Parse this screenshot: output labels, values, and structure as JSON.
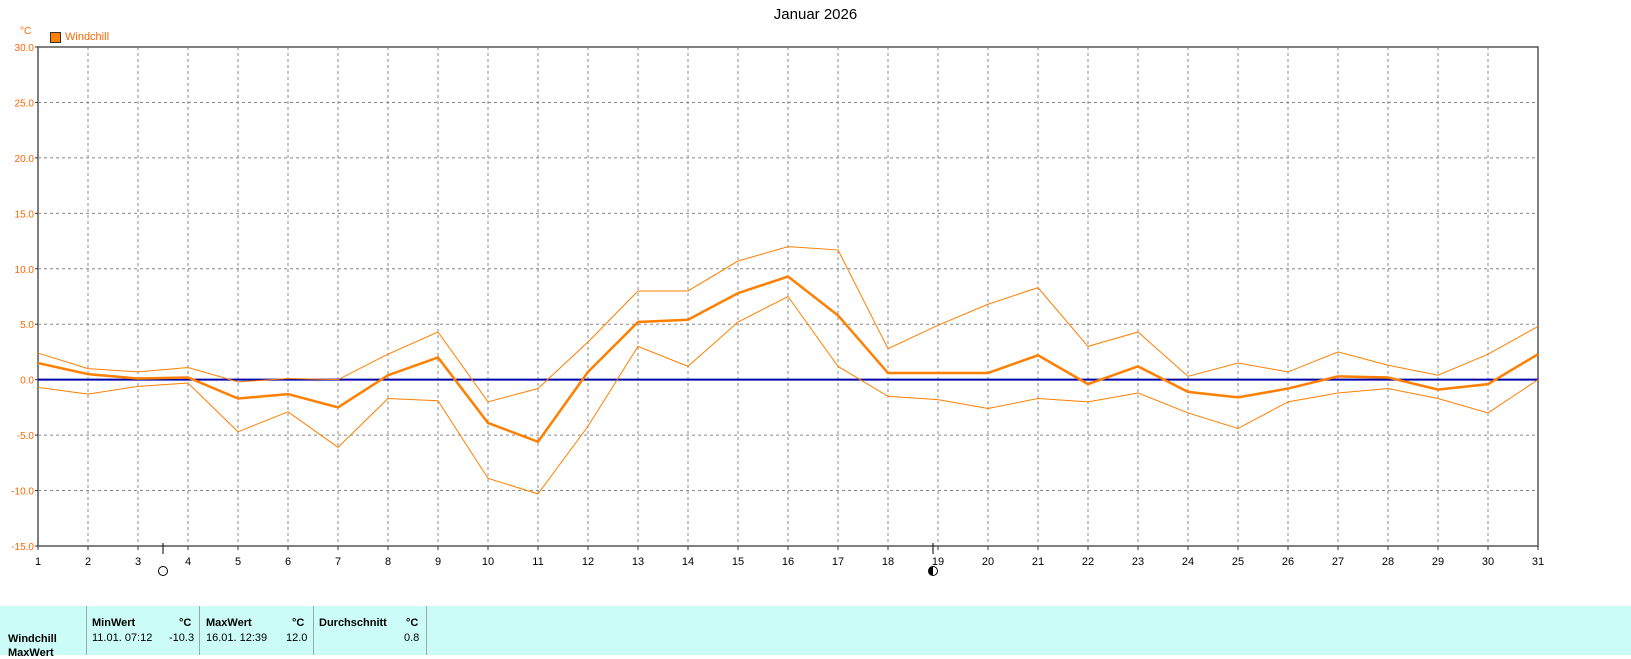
{
  "title": "Januar 2026",
  "unit_label": "°C",
  "legend": {
    "label": "Windchill",
    "color": "#ff7f00"
  },
  "moon_icons": [
    {
      "name": "full-moon-icon",
      "day": 3.5
    },
    {
      "name": "last-quarter-moon-icon",
      "day": 18.9
    }
  ],
  "chart_data": {
    "type": "line",
    "x": [
      1,
      2,
      3,
      4,
      5,
      6,
      7,
      8,
      9,
      10,
      11,
      12,
      13,
      14,
      15,
      16,
      17,
      18,
      19,
      20,
      21,
      22,
      23,
      24,
      25,
      26,
      27,
      28,
      29,
      30,
      31
    ],
    "xticks": [
      "1",
      "2",
      "3",
      "4",
      "5",
      "6",
      "7",
      "8",
      "9",
      "10",
      "11",
      "12",
      "13",
      "14",
      "15",
      "16",
      "17",
      "18",
      "19",
      "20",
      "21",
      "22",
      "23",
      "24",
      "25",
      "26",
      "27",
      "28",
      "29",
      "30",
      "31"
    ],
    "yticks": [
      "30.0",
      "25.0",
      "20.0",
      "15.0",
      "10.0",
      "5.0",
      "0.0",
      "-5.0",
      "-10.0",
      "-15.0"
    ],
    "ylim": [
      -15,
      30
    ],
    "grid": true,
    "reference_line": 0,
    "series": [
      {
        "name": "Windchill",
        "role": "mean",
        "color": "#ff7f00",
        "values": [
          1.5,
          0.5,
          0.1,
          0.2,
          -1.7,
          -1.3,
          -2.5,
          0.4,
          2.0,
          -3.9,
          -5.6,
          0.7,
          5.2,
          5.4,
          7.8,
          9.3,
          5.8,
          0.6,
          0.6,
          0.6,
          2.2,
          -0.4,
          1.2,
          -1.1,
          -1.6,
          -0.8,
          0.3,
          0.2,
          -0.9,
          -0.4,
          2.3
        ]
      },
      {
        "role": "max",
        "color": "#ff7f00",
        "values": [
          2.4,
          1.0,
          0.7,
          1.1,
          -0.2,
          0.1,
          0.0,
          2.3,
          4.3,
          -2.0,
          -0.8,
          3.4,
          8.0,
          8.0,
          10.7,
          12.0,
          11.7,
          2.8,
          4.9,
          6.8,
          8.3,
          3.0,
          4.3,
          0.3,
          1.5,
          0.7,
          2.5,
          1.3,
          0.4,
          2.3,
          4.8
        ]
      },
      {
        "role": "min",
        "color": "#ff7f00",
        "values": [
          -0.7,
          -1.3,
          -0.6,
          -0.3,
          -4.7,
          -2.9,
          -6.1,
          -1.7,
          -1.9,
          -8.9,
          -10.3,
          -4.2,
          3.0,
          1.2,
          5.2,
          7.5,
          1.2,
          -1.5,
          -1.8,
          -2.6,
          -1.7,
          -2.0,
          -1.2,
          -3.0,
          -4.4,
          -2.0,
          -1.2,
          -0.8,
          -1.7,
          -3.0,
          0.0
        ]
      }
    ]
  },
  "stats": {
    "row_label": "Windchill",
    "row_label_2": "MaxWert",
    "min_header": "MinWert",
    "max_header": "MaxWert",
    "avg_header": "Durchschnitt",
    "unit": "°C",
    "min_date": "11.01.  07:12",
    "min_value": "-10.3",
    "max_date": "16.01.  12:39",
    "max_value": "12.0",
    "avg_value": "0.8"
  }
}
